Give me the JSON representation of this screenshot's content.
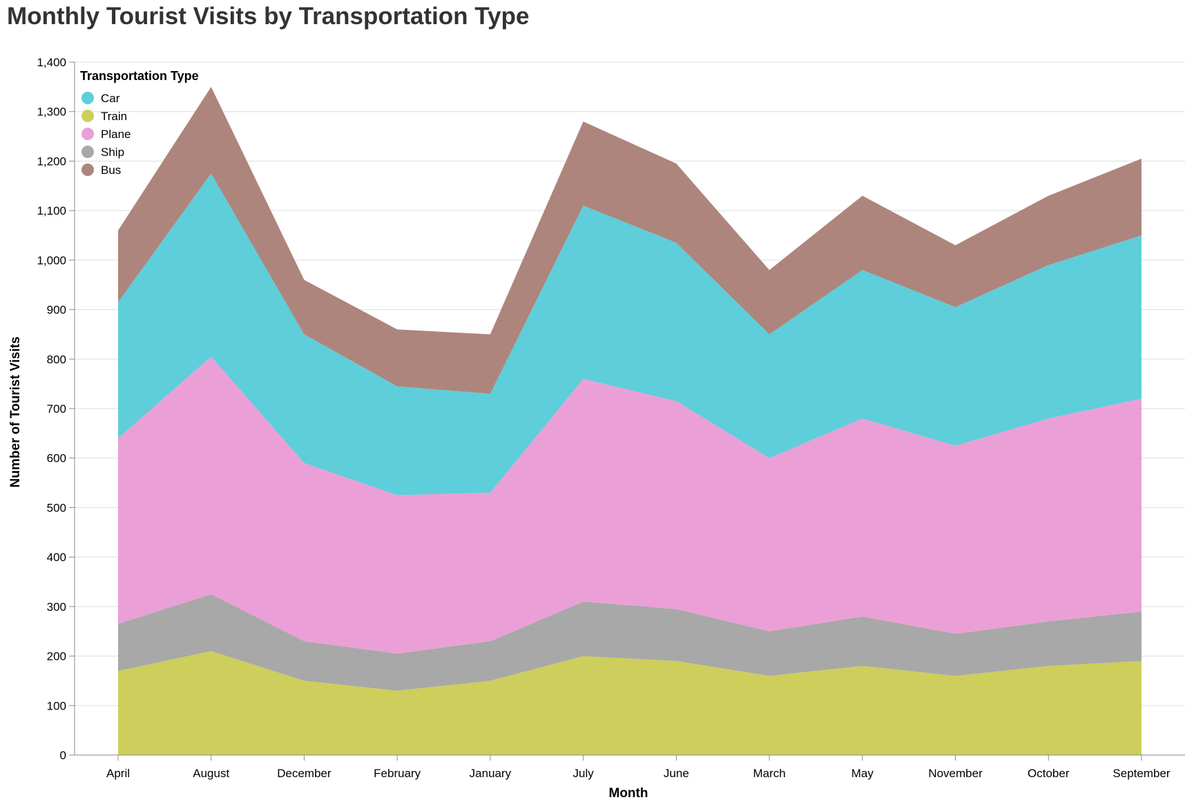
{
  "chart_data": {
    "type": "area",
    "stacked": true,
    "title": "Monthly Tourist Visits by Transportation Type",
    "xlabel": "Month",
    "ylabel": "Number of Tourist Visits",
    "categories": [
      "April",
      "August",
      "December",
      "February",
      "January",
      "July",
      "June",
      "March",
      "May",
      "November",
      "October",
      "September"
    ],
    "ylim": [
      0,
      1400
    ],
    "yticks": [
      0,
      100,
      200,
      300,
      400,
      500,
      600,
      700,
      800,
      900,
      1000,
      1100,
      1200,
      1300,
      1400
    ],
    "ytick_labels": [
      "0",
      "100",
      "200",
      "300",
      "400",
      "500",
      "600",
      "700",
      "800",
      "900",
      "1,000",
      "1,100",
      "1,200",
      "1,300",
      "1,400"
    ],
    "grid": true,
    "legend": {
      "title": "Transportation Type",
      "placement": "top-left",
      "order": [
        "Car",
        "Train",
        "Plane",
        "Ship",
        "Bus"
      ]
    },
    "stack_order": [
      "Train",
      "Ship",
      "Plane",
      "Car",
      "Bus"
    ],
    "series": [
      {
        "name": "Car",
        "color": "#4cc9d6",
        "values": [
          275,
          370,
          260,
          220,
          200,
          350,
          320,
          250,
          300,
          280,
          310,
          330
        ]
      },
      {
        "name": "Train",
        "color": "#c9c94a",
        "values": [
          170,
          210,
          150,
          130,
          150,
          200,
          190,
          160,
          180,
          160,
          180,
          190
        ]
      },
      {
        "name": "Plane",
        "color": "#e896d2",
        "values": [
          375,
          480,
          360,
          320,
          300,
          450,
          420,
          350,
          400,
          380,
          410,
          430
        ]
      },
      {
        "name": "Ship",
        "color": "#9e9e9e",
        "values": [
          95,
          115,
          80,
          75,
          80,
          110,
          105,
          90,
          100,
          85,
          90,
          100
        ]
      },
      {
        "name": "Bus",
        "color": "#a5786e",
        "values": [
          145,
          175,
          110,
          115,
          120,
          170,
          160,
          130,
          150,
          125,
          140,
          155
        ]
      }
    ]
  }
}
